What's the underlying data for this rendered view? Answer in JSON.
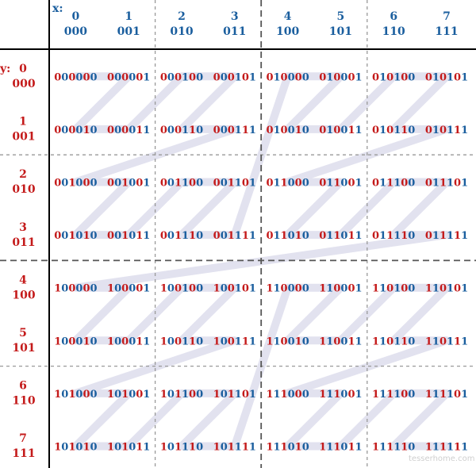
{
  "axes": {
    "x_label": "x:",
    "y_label": "y:",
    "x_values": [
      "0",
      "1",
      "2",
      "3",
      "4",
      "5",
      "6",
      "7"
    ],
    "x_binary": [
      "000",
      "001",
      "010",
      "011",
      "100",
      "101",
      "110",
      "111"
    ],
    "y_values": [
      "0",
      "1",
      "2",
      "3",
      "4",
      "5",
      "6",
      "7"
    ],
    "y_binary": [
      "000",
      "001",
      "010",
      "011",
      "100",
      "101",
      "110",
      "111"
    ]
  },
  "watermark": "tesserhome.com",
  "colors": {
    "x_bits": "#1a5e9e",
    "y_bits": "#c41a1a",
    "curve": "#e2e2ef",
    "grid": "#555555"
  },
  "curve": "z-order (Morton) curve linking cells in interleaved code order"
}
